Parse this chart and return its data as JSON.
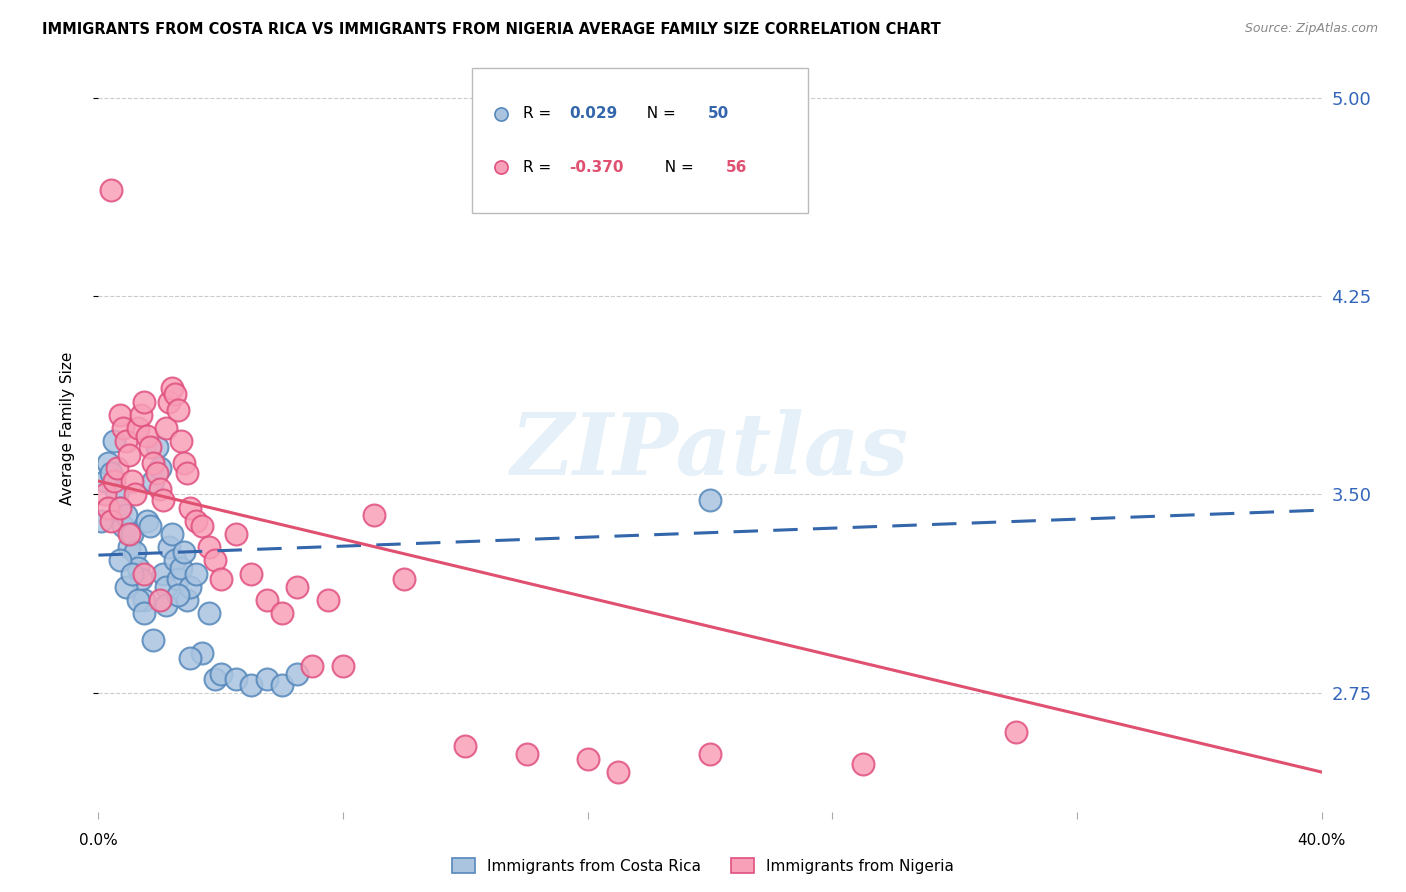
{
  "title": "IMMIGRANTS FROM COSTA RICA VS IMMIGRANTS FROM NIGERIA AVERAGE FAMILY SIZE CORRELATION CHART",
  "source": "Source: ZipAtlas.com",
  "ylabel": "Average Family Size",
  "yticks": [
    2.75,
    3.5,
    4.25,
    5.0
  ],
  "xlim": [
    0.0,
    0.4
  ],
  "ylim": [
    2.3,
    5.2
  ],
  "watermark": "ZIPatlas",
  "legend_entries": [
    {
      "label": "Immigrants from Costa Rica",
      "color": "#aac4e0",
      "border_color": "#5588bb",
      "R": "0.029",
      "N": "50",
      "trend_color": "#3366aa",
      "trend_dashed": true
    },
    {
      "label": "Immigrants from Nigeria",
      "color": "#f8a0b8",
      "border_color": "#e05080",
      "R": "-0.370",
      "N": "56",
      "trend_color": "#e05070",
      "trend_dashed": false
    }
  ],
  "costa_rica_x": [
    0.001,
    0.002,
    0.003,
    0.004,
    0.005,
    0.006,
    0.007,
    0.008,
    0.009,
    0.01,
    0.011,
    0.012,
    0.013,
    0.014,
    0.015,
    0.016,
    0.017,
    0.018,
    0.019,
    0.02,
    0.021,
    0.022,
    0.023,
    0.024,
    0.025,
    0.026,
    0.027,
    0.028,
    0.029,
    0.03,
    0.032,
    0.034,
    0.036,
    0.038,
    0.04,
    0.045,
    0.05,
    0.055,
    0.06,
    0.065,
    0.007,
    0.009,
    0.011,
    0.013,
    0.015,
    0.018,
    0.022,
    0.026,
    0.03,
    0.2
  ],
  "costa_rica_y": [
    3.4,
    3.55,
    3.62,
    3.58,
    3.7,
    3.5,
    3.45,
    3.38,
    3.42,
    3.3,
    3.35,
    3.28,
    3.22,
    3.18,
    3.1,
    3.4,
    3.38,
    3.55,
    3.68,
    3.6,
    3.2,
    3.15,
    3.3,
    3.35,
    3.25,
    3.18,
    3.22,
    3.28,
    3.1,
    3.15,
    3.2,
    2.9,
    3.05,
    2.8,
    2.82,
    2.8,
    2.78,
    2.8,
    2.78,
    2.82,
    3.25,
    3.15,
    3.2,
    3.1,
    3.05,
    2.95,
    3.08,
    3.12,
    2.88,
    3.48
  ],
  "nigeria_x": [
    0.002,
    0.003,
    0.004,
    0.005,
    0.006,
    0.007,
    0.008,
    0.009,
    0.01,
    0.011,
    0.012,
    0.013,
    0.014,
    0.015,
    0.016,
    0.017,
    0.018,
    0.019,
    0.02,
    0.021,
    0.022,
    0.023,
    0.024,
    0.025,
    0.026,
    0.027,
    0.028,
    0.029,
    0.03,
    0.032,
    0.034,
    0.036,
    0.038,
    0.04,
    0.045,
    0.05,
    0.055,
    0.06,
    0.065,
    0.07,
    0.075,
    0.08,
    0.09,
    0.1,
    0.12,
    0.14,
    0.16,
    0.3,
    0.17,
    0.2,
    0.004,
    0.007,
    0.01,
    0.015,
    0.02,
    0.25
  ],
  "nigeria_y": [
    3.5,
    3.45,
    3.4,
    3.55,
    3.6,
    3.8,
    3.75,
    3.7,
    3.65,
    3.55,
    3.5,
    3.75,
    3.8,
    3.85,
    3.72,
    3.68,
    3.62,
    3.58,
    3.52,
    3.48,
    3.75,
    3.85,
    3.9,
    3.88,
    3.82,
    3.7,
    3.62,
    3.58,
    3.45,
    3.4,
    3.38,
    3.3,
    3.25,
    3.18,
    3.35,
    3.2,
    3.1,
    3.05,
    3.15,
    2.85,
    3.1,
    2.85,
    3.42,
    3.18,
    2.55,
    2.52,
    2.5,
    2.6,
    2.45,
    2.52,
    4.65,
    3.45,
    3.35,
    3.2,
    3.1,
    2.48
  ],
  "background_color": "#ffffff",
  "grid_color": "#cccccc",
  "right_axis_color": "#3366bb",
  "title_fontsize": 10.5,
  "source_fontsize": 9
}
